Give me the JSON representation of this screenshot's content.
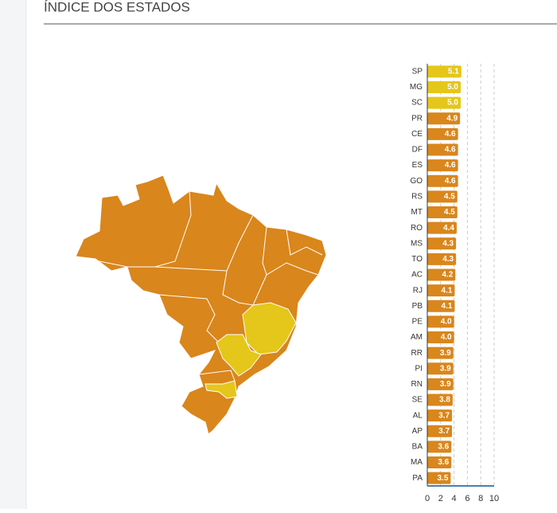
{
  "title": "ÍNDICE DOS ESTADOS",
  "chart_data": {
    "type": "bar",
    "orientation": "horizontal",
    "categories": [
      "SP",
      "MG",
      "SC",
      "PR",
      "CE",
      "DF",
      "ES",
      "GO",
      "RS",
      "MT",
      "RO",
      "MS",
      "TO",
      "AC",
      "RJ",
      "PB",
      "PE",
      "AM",
      "RR",
      "PI",
      "RN",
      "SE",
      "AL",
      "AP",
      "BA",
      "MA",
      "PA"
    ],
    "values": [
      5.1,
      5.0,
      5.0,
      4.9,
      4.6,
      4.6,
      4.6,
      4.6,
      4.5,
      4.5,
      4.4,
      4.3,
      4.3,
      4.2,
      4.1,
      4.1,
      4.0,
      4.0,
      3.9,
      3.9,
      3.9,
      3.8,
      3.7,
      3.7,
      3.6,
      3.6,
      3.5
    ],
    "value_labels": [
      "5.1",
      "5.0",
      "5.0",
      "4.9",
      "4.6",
      "4.6",
      "4.6",
      "4.6",
      "4.5",
      "4.5",
      "4.4",
      "4.3",
      "4.3",
      "4.2",
      "4.1",
      "4.1",
      "4.0",
      "4.0",
      "3.9",
      "3.9",
      "3.9",
      "3.8",
      "3.7",
      "3.7",
      "3.6",
      "3.6",
      "3.5"
    ],
    "colors": [
      "#e5c61a",
      "#e5c61a",
      "#e5c61a",
      "#d9861c",
      "#d9861c",
      "#d9861c",
      "#d9861c",
      "#d9861c",
      "#d9861c",
      "#d9861c",
      "#d9861c",
      "#d9861c",
      "#d9861c",
      "#d9861c",
      "#d9861c",
      "#d9861c",
      "#d9861c",
      "#d9861c",
      "#d9861c",
      "#d9861c",
      "#d9861c",
      "#d9861c",
      "#d9861c",
      "#d9861c",
      "#d9861c",
      "#d9861c",
      "#d9861c"
    ],
    "xlim": [
      0,
      10
    ],
    "xticks": [
      0,
      2,
      4,
      6,
      8,
      10
    ],
    "grid": true
  }
}
